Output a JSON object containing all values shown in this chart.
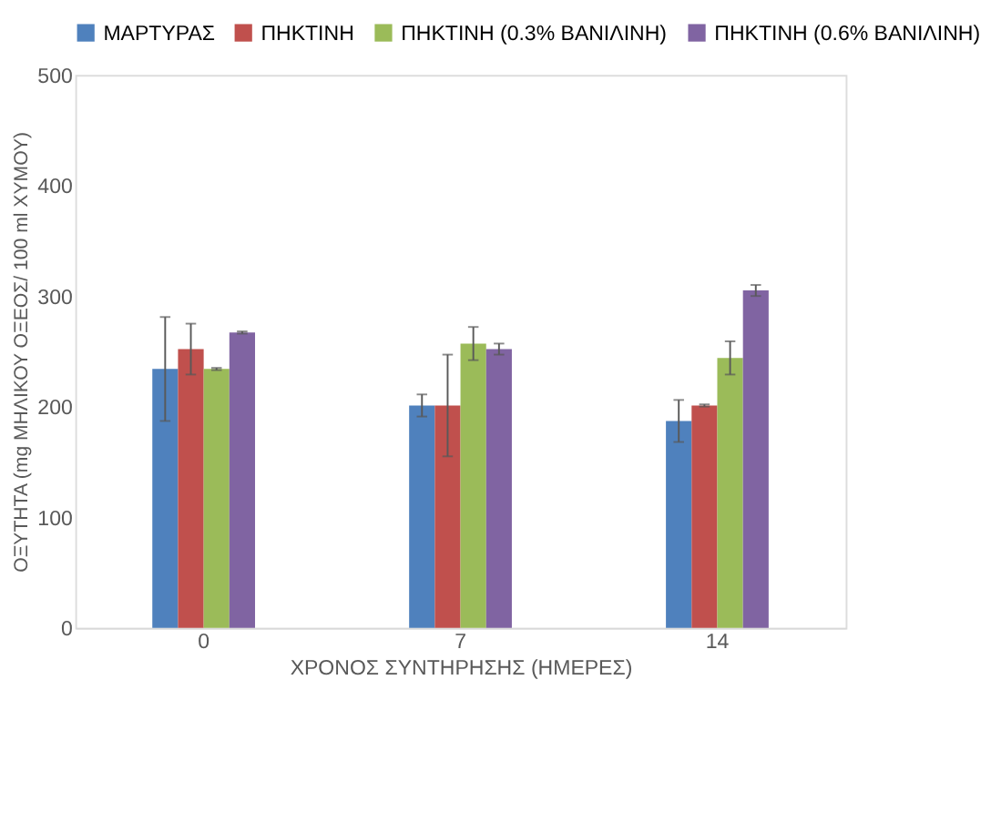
{
  "chart_data": {
    "type": "bar",
    "xlabel": "ΧΡΟΝΟΣ ΣΥΝΤΗΡΗΣΗΣ (ΗΜΕΡΕΣ)",
    "ylabel": "ΟΞΥΤΗΤΑ (mg  ΜΗΛΙΚΟΥ ΟΞΕΟΣ/ 100 ml ΧΥΜΟΥ)",
    "categories": [
      "0",
      "7",
      "14"
    ],
    "series": [
      {
        "name": "ΜΑΡΤΥΡΑΣ",
        "color": "#4f81bd",
        "values": [
          234,
          201,
          187
        ],
        "errors": [
          47,
          10,
          19
        ]
      },
      {
        "name": "ΠΗΚΤΙΝΗ",
        "color": "#c0504d",
        "values": [
          252,
          201,
          201
        ],
        "errors": [
          23,
          46,
          1
        ]
      },
      {
        "name": "ΠΗΚΤΙΝΗ (0.3% ΒΑΝΙΛΙΝΗ)",
        "color": "#9bbb59",
        "values": [
          234,
          257,
          244
        ],
        "errors": [
          1,
          15,
          15
        ]
      },
      {
        "name": "ΠΗΚΤΙΝΗ (0.6% ΒΑΝΙΛΙΝΗ)",
        "color": "#8064a2",
        "values": [
          267,
          252,
          305
        ],
        "errors": [
          1,
          5,
          5
        ]
      }
    ],
    "ylim": [
      0,
      500
    ],
    "yticks": [
      0,
      100,
      200,
      300,
      400,
      500
    ],
    "grid": false,
    "legend": "top"
  }
}
